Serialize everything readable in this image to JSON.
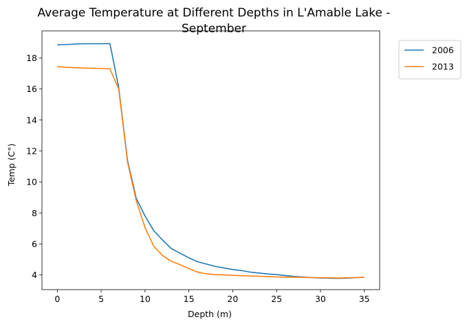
{
  "chart_data": {
    "type": "line",
    "title": "Average Temperature at Different Depths in L'Amable Lake - September",
    "title_lines": [
      "Average Temperature at Different Depths in L'Amable Lake -",
      "September"
    ],
    "xlabel": "Depth (m)",
    "ylabel": "Temp (C°)",
    "xlim": [
      -1.75,
      36.75
    ],
    "ylim": [
      3.05,
      19.75
    ],
    "x_ticks": [
      0,
      5,
      10,
      15,
      20,
      25,
      30,
      35
    ],
    "y_ticks": [
      4,
      6,
      8,
      10,
      12,
      14,
      16,
      18
    ],
    "grid": false,
    "legend_position": "outside-top-right",
    "series": [
      {
        "name": "2006",
        "color": "#1f77b4",
        "x": [
          0,
          1,
          2,
          3,
          4,
          5,
          6,
          7,
          8,
          9,
          10,
          11,
          12,
          13,
          14,
          15,
          16,
          17,
          18,
          19,
          20,
          21,
          22,
          23,
          24,
          25,
          26,
          27,
          28,
          29,
          30,
          31,
          32,
          33,
          34,
          35
        ],
        "y": [
          18.85,
          18.87,
          18.9,
          18.92,
          18.92,
          18.92,
          18.93,
          16.1,
          11.4,
          8.95,
          7.8,
          6.85,
          6.25,
          5.7,
          5.4,
          5.1,
          4.85,
          4.7,
          4.55,
          4.45,
          4.35,
          4.28,
          4.18,
          4.12,
          4.06,
          4.02,
          3.96,
          3.9,
          3.86,
          3.83,
          3.8,
          3.79,
          3.78,
          3.79,
          3.82,
          3.85
        ]
      },
      {
        "name": "2013",
        "color": "#ff7f0e",
        "x": [
          0,
          1,
          2,
          3,
          4,
          5,
          6,
          7,
          8,
          9,
          10,
          11,
          12,
          13,
          14,
          15,
          16,
          17,
          18,
          19,
          20,
          21,
          22,
          23,
          24,
          25,
          26,
          27,
          28,
          29,
          30,
          31,
          32,
          33,
          34,
          35
        ],
        "y": [
          17.45,
          17.4,
          17.37,
          17.35,
          17.34,
          17.33,
          17.3,
          16.0,
          11.3,
          8.8,
          7.05,
          5.85,
          5.25,
          4.88,
          4.66,
          4.4,
          4.18,
          4.07,
          4.02,
          4.0,
          3.97,
          3.95,
          3.93,
          3.91,
          3.89,
          3.87,
          3.86,
          3.85,
          3.84,
          3.83,
          3.82,
          3.81,
          3.8,
          3.81,
          3.83,
          3.85
        ]
      }
    ]
  }
}
